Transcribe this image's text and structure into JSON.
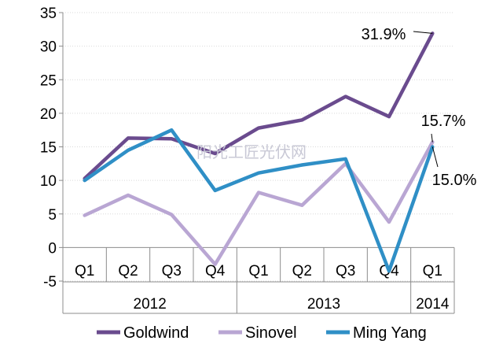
{
  "chart_data": {
    "type": "line",
    "title": "",
    "xlabel": "",
    "ylabel": "",
    "ylim": [
      -5,
      35
    ],
    "yticks": [
      -5,
      0,
      5,
      10,
      15,
      20,
      25,
      30,
      35
    ],
    "categories": [
      "Q1",
      "Q2",
      "Q3",
      "Q4",
      "Q1",
      "Q2",
      "Q3",
      "Q4",
      "Q1"
    ],
    "year_groups": [
      {
        "label": "2012",
        "span": 4
      },
      {
        "label": "2013",
        "span": 4
      },
      {
        "label": "2014",
        "span": 1
      }
    ],
    "grid": true,
    "series": [
      {
        "name": "Goldwind",
        "color": "#6a4b8e",
        "values": [
          10.3,
          16.3,
          16.2,
          14.0,
          17.8,
          19.0,
          22.5,
          19.5,
          31.9
        ]
      },
      {
        "name": "Sinovel",
        "color": "#b9a6d3",
        "values": [
          4.8,
          7.8,
          4.9,
          -2.5,
          8.2,
          6.3,
          12.5,
          3.8,
          15.7
        ]
      },
      {
        "name": "Ming Yang",
        "color": "#2f8fc6",
        "values": [
          10.0,
          14.5,
          17.5,
          8.5,
          11.1,
          12.3,
          13.2,
          -3.5,
          15.0
        ]
      }
    ],
    "annotations": [
      {
        "series": "Goldwind",
        "index": 8,
        "text": "31.9%"
      },
      {
        "series": "Sinovel",
        "index": 8,
        "text": "15.7%"
      },
      {
        "series": "Ming Yang",
        "index": 8,
        "text": "15.0%"
      }
    ],
    "legend_position": "bottom"
  },
  "watermark": "阳光工匠光伏网"
}
